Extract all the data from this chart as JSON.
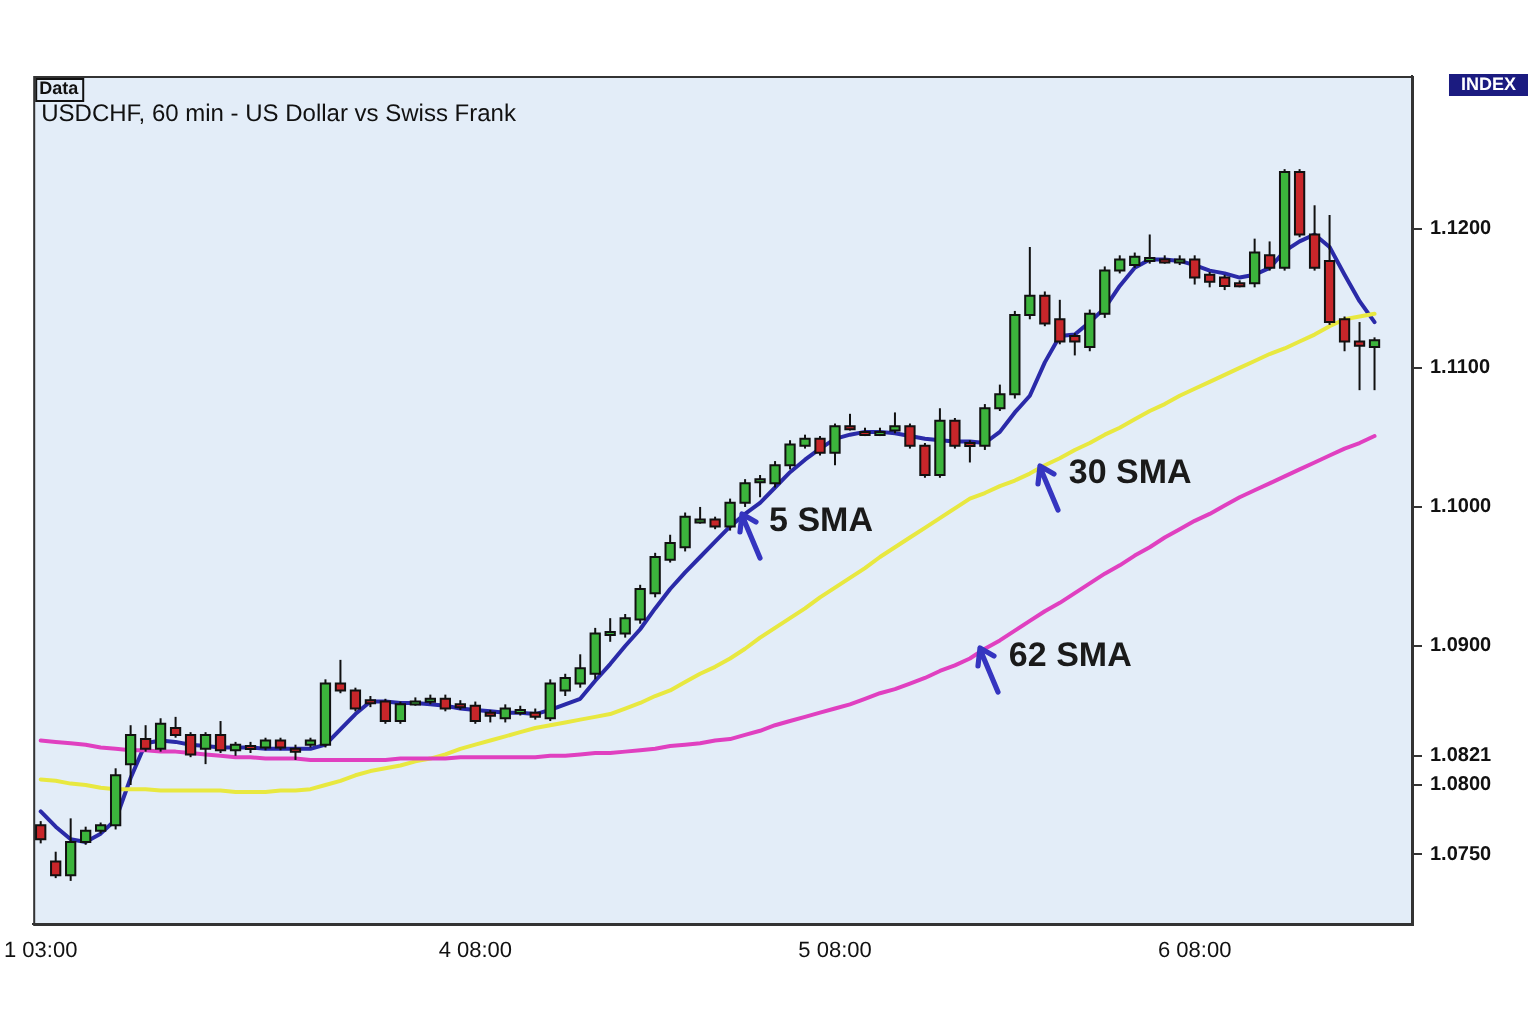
{
  "chart_data": {
    "type": "candlestick",
    "title": "USDCHF, 60 min - US Dollar vs Swiss Frank",
    "annotations": [
      "Data",
      "INDEX"
    ],
    "categories": [
      "1 03:00",
      null,
      null,
      null,
      null,
      null,
      null,
      null,
      null,
      null,
      null,
      null,
      null,
      null,
      null,
      null,
      null,
      null,
      null,
      null,
      null,
      null,
      null,
      null,
      null,
      null,
      null,
      null,
      null,
      "4 08:00",
      null,
      null,
      null,
      null,
      null,
      null,
      null,
      null,
      null,
      null,
      null,
      null,
      null,
      null,
      null,
      null,
      null,
      null,
      null,
      null,
      null,
      null,
      null,
      "5 08:00",
      null,
      null,
      null,
      null,
      null,
      null,
      null,
      null,
      null,
      null,
      null,
      null,
      null,
      null,
      null,
      null,
      null,
      null,
      null,
      null,
      null,
      null,
      null,
      "6 08:00",
      null,
      null,
      null,
      null,
      null,
      null,
      null,
      null,
      null,
      null,
      null,
      null
    ],
    "ohlc": [
      [
        1.0771,
        1.0774,
        1.0758,
        1.0761
      ],
      [
        1.0745,
        1.0752,
        1.0733,
        1.0735
      ],
      [
        1.0735,
        1.0776,
        1.0731,
        1.0759
      ],
      [
        1.0759,
        1.077,
        1.0757,
        1.0767
      ],
      [
        1.0767,
        1.0773,
        1.0765,
        1.0771
      ],
      [
        1.0771,
        1.0812,
        1.0768,
        1.0807
      ],
      [
        1.0815,
        1.0843,
        1.08,
        1.0836
      ],
      [
        1.0833,
        1.0843,
        1.0824,
        1.0826
      ],
      [
        1.0826,
        1.0848,
        1.0824,
        1.0844
      ],
      [
        1.0841,
        1.0849,
        1.0834,
        1.0836
      ],
      [
        1.0836,
        1.0838,
        1.082,
        1.0822
      ],
      [
        1.0826,
        1.0838,
        1.0815,
        1.0836
      ],
      [
        1.0836,
        1.0846,
        1.0823,
        1.0825
      ],
      [
        1.0825,
        1.0831,
        1.0821,
        1.0829
      ],
      [
        1.0828,
        1.0831,
        1.0823,
        1.0827
      ],
      [
        1.0827,
        1.0834,
        1.0825,
        1.0832
      ],
      [
        1.0832,
        1.0834,
        1.0825,
        1.0827
      ],
      [
        1.0826,
        1.0829,
        1.0818,
        1.0825
      ],
      [
        1.0829,
        1.0834,
        1.0827,
        1.0832
      ],
      [
        1.0829,
        1.0876,
        1.0827,
        1.0873
      ],
      [
        1.0873,
        1.089,
        1.0866,
        1.0868
      ],
      [
        1.0868,
        1.087,
        1.0853,
        1.0855
      ],
      [
        1.0861,
        1.0864,
        1.0856,
        1.0859
      ],
      [
        1.086,
        1.0862,
        1.0844,
        1.0846
      ],
      [
        1.0846,
        1.086,
        1.0844,
        1.0858
      ],
      [
        1.0859,
        1.0863,
        1.0857,
        1.086
      ],
      [
        1.0861,
        1.0865,
        1.0858,
        1.0862
      ],
      [
        1.0862,
        1.0865,
        1.0853,
        1.0855
      ],
      [
        1.0858,
        1.0861,
        1.0854,
        1.0857
      ],
      [
        1.0857,
        1.086,
        1.0844,
        1.0846
      ],
      [
        1.0852,
        1.0854,
        1.0845,
        1.0851
      ],
      [
        1.0848,
        1.0858,
        1.0845,
        1.0855
      ],
      [
        1.0853,
        1.0857,
        1.085,
        1.0854
      ],
      [
        1.0852,
        1.0855,
        1.0847,
        1.0849
      ],
      [
        1.0848,
        1.0876,
        1.0846,
        1.0873
      ],
      [
        1.0868,
        1.088,
        1.0864,
        1.0877
      ],
      [
        1.0873,
        1.0894,
        1.087,
        1.0884
      ],
      [
        1.088,
        1.0913,
        1.0876,
        1.0909
      ],
      [
        1.0909,
        1.092,
        1.0903,
        1.091
      ],
      [
        1.0909,
        1.0923,
        1.0906,
        1.092
      ],
      [
        1.0919,
        1.0944,
        1.0916,
        1.0941
      ],
      [
        1.0938,
        1.0967,
        1.0935,
        1.0964
      ],
      [
        1.0962,
        1.098,
        1.096,
        1.0974
      ],
      [
        1.0971,
        1.0996,
        1.0968,
        1.0993
      ],
      [
        1.099,
        1.1,
        1.0988,
        1.0991
      ],
      [
        1.0991,
        1.0993,
        1.0984,
        1.0986
      ],
      [
        1.0986,
        1.1006,
        1.0983,
        1.1003
      ],
      [
        1.1003,
        1.102,
        1.1,
        1.1017
      ],
      [
        1.1019,
        1.1023,
        1.1007,
        1.102
      ],
      [
        1.1017,
        1.1033,
        1.1014,
        1.103
      ],
      [
        1.103,
        1.1048,
        1.1027,
        1.1045
      ],
      [
        1.1044,
        1.1052,
        1.1042,
        1.1049
      ],
      [
        1.1049,
        1.1051,
        1.1037,
        1.1039
      ],
      [
        1.1039,
        1.106,
        1.103,
        1.1058
      ],
      [
        1.1058,
        1.1067,
        1.1055,
        1.1057
      ],
      [
        1.1054,
        1.1057,
        1.1051,
        1.1053
      ],
      [
        1.1053,
        1.1057,
        1.1051,
        1.1054
      ],
      [
        1.1055,
        1.1068,
        1.1053,
        1.1058
      ],
      [
        1.1058,
        1.106,
        1.1042,
        1.1044
      ],
      [
        1.1044,
        1.1046,
        1.1021,
        1.1023
      ],
      [
        1.1023,
        1.1071,
        1.1021,
        1.1062
      ],
      [
        1.1062,
        1.1064,
        1.1042,
        1.1044
      ],
      [
        1.1046,
        1.1048,
        1.1032,
        1.1045
      ],
      [
        1.1044,
        1.1074,
        1.1041,
        1.1071
      ],
      [
        1.1071,
        1.1088,
        1.1069,
        1.1081
      ],
      [
        1.1081,
        1.1141,
        1.1078,
        1.1138
      ],
      [
        1.1138,
        1.1187,
        1.1135,
        1.1152
      ],
      [
        1.1152,
        1.1155,
        1.113,
        1.1132
      ],
      [
        1.1135,
        1.1149,
        1.1117,
        1.1119
      ],
      [
        1.1123,
        1.1125,
        1.1109,
        1.1119
      ],
      [
        1.1115,
        1.1142,
        1.1112,
        1.1139
      ],
      [
        1.1139,
        1.1173,
        1.1136,
        1.117
      ],
      [
        1.117,
        1.1181,
        1.1168,
        1.1178
      ],
      [
        1.1174,
        1.1183,
        1.1172,
        1.118
      ],
      [
        1.1178,
        1.1196,
        1.1175,
        1.1179
      ],
      [
        1.1178,
        1.1181,
        1.1175,
        1.1177
      ],
      [
        1.1177,
        1.1181,
        1.1174,
        1.1178
      ],
      [
        1.1178,
        1.1181,
        1.116,
        1.1165
      ],
      [
        1.1167,
        1.1169,
        1.1158,
        1.1162
      ],
      [
        1.1165,
        1.1167,
        1.1156,
        1.1159
      ],
      [
        1.1161,
        1.1163,
        1.1158,
        1.116
      ],
      [
        1.1161,
        1.1193,
        1.1158,
        1.1183
      ],
      [
        1.1181,
        1.1191,
        1.117,
        1.1172
      ],
      [
        1.1172,
        1.1243,
        1.117,
        1.1241
      ],
      [
        1.1241,
        1.1243,
        1.1194,
        1.1196
      ],
      [
        1.1196,
        1.1217,
        1.117,
        1.1172
      ],
      [
        1.1177,
        1.121,
        1.1131,
        1.1133
      ],
      [
        1.1135,
        1.1137,
        1.1112,
        1.1119
      ],
      [
        1.1119,
        1.1133,
        1.1084,
        1.1116
      ],
      [
        1.1115,
        1.1122,
        1.1084,
        1.112
      ]
    ],
    "colors": [
      "#c8262a",
      "#c8262a",
      "#3cb43c",
      "#3cb43c",
      "#3cb43c",
      "#3cb43c",
      "#3cb43c",
      "#c8262a",
      "#3cb43c",
      "#c8262a",
      "#c8262a",
      "#3cb43c",
      "#c8262a",
      "#3cb43c",
      "#c8262a",
      "#3cb43c",
      "#c8262a",
      "#c8262a",
      "#3cb43c",
      "#3cb43c",
      "#c8262a",
      "#c8262a",
      "#c8262a",
      "#c8262a",
      "#3cb43c",
      "#3cb43c",
      "#3cb43c",
      "#c8262a",
      "#c8262a",
      "#c8262a",
      "#c8262a",
      "#3cb43c",
      "#3cb43c",
      "#c8262a",
      "#3cb43c",
      "#3cb43c",
      "#3cb43c",
      "#3cb43c",
      "#3cb43c",
      "#3cb43c",
      "#3cb43c",
      "#3cb43c",
      "#3cb43c",
      "#3cb43c",
      "#3cb43c",
      "#c8262a",
      "#3cb43c",
      "#3cb43c",
      "#3cb43c",
      "#3cb43c",
      "#3cb43c",
      "#3cb43c",
      "#c8262a",
      "#3cb43c",
      "#c8262a",
      "#c8262a",
      "#3cb43c",
      "#3cb43c",
      "#c8262a",
      "#c8262a",
      "#3cb43c",
      "#c8262a",
      "#c8262a",
      "#3cb43c",
      "#3cb43c",
      "#3cb43c",
      "#3cb43c",
      "#c8262a",
      "#c8262a",
      "#c8262a",
      "#3cb43c",
      "#3cb43c",
      "#3cb43c",
      "#3cb43c",
      "#3cb43c",
      "#c8262a",
      "#3cb43c",
      "#c8262a",
      "#c8262a",
      "#c8262a",
      "#c8262a",
      "#3cb43c",
      "#c8262a",
      "#3cb43c",
      "#c8262a",
      "#c8262a",
      "#c8262a",
      "#c8262a",
      "#c8262a",
      "#3cb43c"
    ],
    "series": [
      {
        "type": "line",
        "name": "62 SMA",
        "color": "#e040c0",
        "values": [
          1.0832,
          1.0831,
          1.083,
          1.0829,
          1.0827,
          1.0826,
          1.0825,
          1.0825,
          1.0824,
          1.0824,
          1.0823,
          1.0822,
          1.0821,
          1.082,
          1.082,
          1.0819,
          1.0819,
          1.0819,
          1.0818,
          1.0818,
          1.0818,
          1.0818,
          1.0818,
          1.0818,
          1.0819,
          1.0819,
          1.0819,
          1.0819,
          1.082,
          1.082,
          1.082,
          1.082,
          1.082,
          1.082,
          1.0821,
          1.0821,
          1.0822,
          1.0823,
          1.0823,
          1.0824,
          1.0825,
          1.0826,
          1.0828,
          1.0829,
          1.083,
          1.0832,
          1.0833,
          1.0836,
          1.0839,
          1.0843,
          1.0846,
          1.0849,
          1.0852,
          1.0855,
          1.0858,
          1.0862,
          1.0866,
          1.0869,
          1.0873,
          1.0877,
          1.0882,
          1.0886,
          1.0891,
          1.0898,
          1.0904,
          1.0911,
          1.0918,
          1.0925,
          1.0931,
          1.0938,
          1.0945,
          1.0952,
          1.0958,
          1.0965,
          1.0971,
          1.0978,
          1.0984,
          1.099,
          1.0995,
          1.1001,
          1.1007,
          1.1012,
          1.1017,
          1.1022,
          1.1027,
          1.1032,
          1.1037,
          1.1042,
          1.1046,
          1.1051
        ]
      },
      {
        "type": "line",
        "name": "30 SMA",
        "color": "#e8e840",
        "values": [
          1.0804,
          1.0803,
          1.0801,
          1.08,
          1.0798,
          1.0797,
          1.0797,
          1.0797,
          1.0796,
          1.0796,
          1.0796,
          1.0796,
          1.0796,
          1.0795,
          1.0795,
          1.0795,
          1.0796,
          1.0796,
          1.0797,
          1.08,
          1.0803,
          1.0807,
          1.081,
          1.0812,
          1.0814,
          1.0817,
          1.0819,
          1.0822,
          1.0826,
          1.0829,
          1.0832,
          1.0835,
          1.0838,
          1.0841,
          1.0843,
          1.0845,
          1.0847,
          1.0849,
          1.0851,
          1.0855,
          1.0859,
          1.0864,
          1.0868,
          1.0874,
          1.088,
          1.0885,
          1.0891,
          1.0898,
          1.0906,
          1.0913,
          1.092,
          1.0927,
          1.0935,
          1.0942,
          1.0949,
          1.0956,
          1.0964,
          1.0971,
          1.0978,
          1.0985,
          1.0992,
          1.0999,
          1.1006,
          1.101,
          1.1015,
          1.1019,
          1.1024,
          1.103,
          1.1035,
          1.1041,
          1.1046,
          1.1052,
          1.1057,
          1.1063,
          1.1069,
          1.1074,
          1.108,
          1.1085,
          1.109,
          1.1095,
          1.11,
          1.1105,
          1.111,
          1.1114,
          1.1119,
          1.1124,
          1.113,
          1.1135,
          1.1137,
          1.1139
        ]
      },
      {
        "type": "line",
        "name": "5 SMA",
        "color": "#2a2aa8",
        "values": [
          1.0781,
          1.077,
          1.0761,
          1.0759,
          1.0765,
          1.0775,
          1.0805,
          1.083,
          1.0832,
          1.0831,
          1.0829,
          1.0828,
          1.0827,
          1.0827,
          1.0827,
          1.0826,
          1.0826,
          1.0826,
          1.0826,
          1.0829,
          1.084,
          1.0851,
          1.086,
          1.086,
          1.0859,
          1.0859,
          1.0858,
          1.0857,
          1.0855,
          1.0854,
          1.0853,
          1.0852,
          1.0852,
          1.0851,
          1.0854,
          1.0858,
          1.0862,
          1.0875,
          1.0887,
          1.09,
          1.0912,
          1.0927,
          1.0941,
          1.0953,
          1.0964,
          1.0975,
          1.0986,
          1.0995,
          1.1003,
          1.1014,
          1.1025,
          1.1034,
          1.1042,
          1.1049,
          1.1052,
          1.1054,
          1.1054,
          1.1053,
          1.1051,
          1.1049,
          1.1048,
          1.1047,
          1.1047,
          1.1046,
          1.1054,
          1.1068,
          1.108,
          1.1104,
          1.1123,
          1.1124,
          1.1133,
          1.1143,
          1.1159,
          1.1172,
          1.1178,
          1.1178,
          1.1177,
          1.1174,
          1.117,
          1.1168,
          1.1165,
          1.1167,
          1.1172,
          1.1184,
          1.1191,
          1.1196,
          1.1187,
          1.1167,
          1.1148,
          1.1133
        ]
      }
    ],
    "ylim": [
      1.07,
      1.131
    ],
    "yticks": [
      {
        "value": 1.075,
        "label": "1.0750"
      },
      {
        "value": 1.08,
        "label": "1.0800"
      },
      {
        "value": 1.0821,
        "label": "1.0821"
      },
      {
        "value": 1.09,
        "label": "1.0900"
      },
      {
        "value": 1.1,
        "label": "1.1000"
      },
      {
        "value": 1.11,
        "label": "1.1100"
      },
      {
        "value": 1.12,
        "label": "1.1200"
      }
    ]
  }
}
